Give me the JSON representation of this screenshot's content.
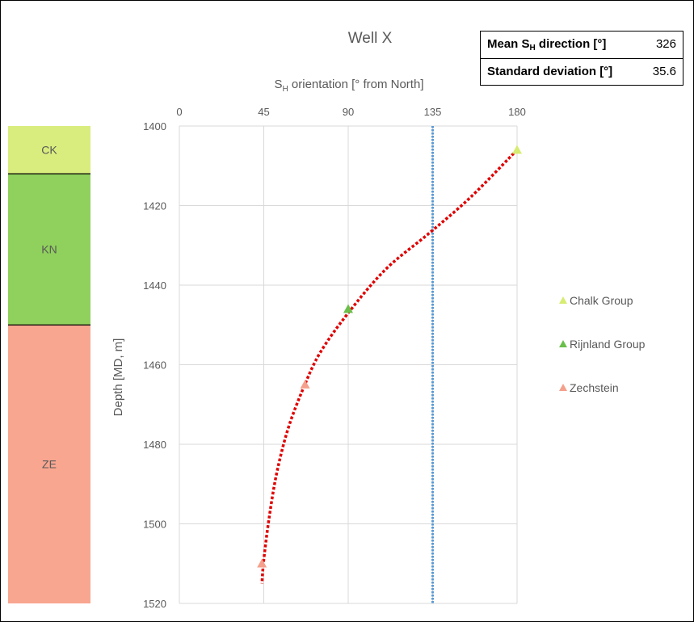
{
  "stats": {
    "row1": {
      "label": "Mean S",
      "label_sub": "H",
      "label_tail": " direction [°]",
      "value": "326"
    },
    "row2": {
      "label": "Standard deviation [°]",
      "value": "35.6"
    }
  },
  "formations": [
    {
      "label": "CK",
      "top": 1400,
      "bottom": 1412,
      "color": "#d9ed7e"
    },
    {
      "label": "KN",
      "top": 1412,
      "bottom": 1450,
      "color": "#8fd15c"
    },
    {
      "label": "ZE",
      "top": 1450,
      "bottom": 1520,
      "color": "#f9a690"
    }
  ],
  "chart_data": {
    "type": "scatter",
    "title": "Well X",
    "xlabel_main": "S",
    "xlabel_sub": "H",
    "xlabel_tail": " orientation [° from North]",
    "ylabel": "Depth [MD, m]",
    "xlim": [
      0,
      180
    ],
    "ylim": [
      1400,
      1520
    ],
    "y_inverted": true,
    "x_axis_position": "top",
    "xticks": [
      0,
      45,
      90,
      135,
      180
    ],
    "yticks": [
      1400,
      1420,
      1440,
      1460,
      1480,
      1500,
      1520
    ],
    "grid": true,
    "legend_position": "right",
    "series": [
      {
        "name": "Chalk Group",
        "color": "#d6ec72",
        "points": [
          {
            "x": 180,
            "y": 1406
          }
        ]
      },
      {
        "name": "Rijnland Group",
        "color": "#6abf4b",
        "points": [
          {
            "x": 90,
            "y": 1446
          }
        ]
      },
      {
        "name": "Zechstein",
        "color": "#f4a08c",
        "points": [
          {
            "x": 67,
            "y": 1465
          },
          {
            "x": 44,
            "y": 1510
          }
        ]
      }
    ],
    "trend_line": {
      "color": "#e00000",
      "points": [
        {
          "x": 180,
          "y": 1406
        },
        {
          "x": 155,
          "y": 1418
        },
        {
          "x": 133,
          "y": 1427
        },
        {
          "x": 110,
          "y": 1436
        },
        {
          "x": 90,
          "y": 1447
        },
        {
          "x": 75,
          "y": 1457
        },
        {
          "x": 66,
          "y": 1466
        },
        {
          "x": 58,
          "y": 1476
        },
        {
          "x": 52,
          "y": 1487
        },
        {
          "x": 48,
          "y": 1498
        },
        {
          "x": 45,
          "y": 1509
        },
        {
          "x": 44,
          "y": 1515
        }
      ]
    },
    "reference_line": {
      "x": 135,
      "color": "#5b9bd5"
    }
  }
}
